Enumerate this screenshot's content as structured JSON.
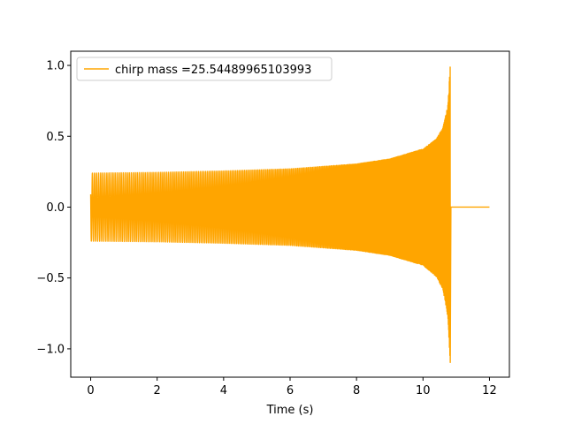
{
  "chart_data": {
    "type": "line",
    "title": "",
    "xlabel": "Time (s)",
    "ylabel": "",
    "xlim": [
      -0.6,
      12.6
    ],
    "ylim": [
      -1.2,
      1.1
    ],
    "x_ticks": [
      0,
      2,
      4,
      6,
      8,
      10,
      12
    ],
    "x_tick_labels": [
      "0",
      "2",
      "4",
      "6",
      "8",
      "10",
      "12"
    ],
    "y_ticks": [
      -1.0,
      -0.5,
      0.0,
      0.5,
      1.0
    ],
    "y_tick_labels": [
      "−1.0",
      "−0.5",
      "0.0",
      "0.5",
      "1.0"
    ],
    "grid": false,
    "legend_position": "upper-left",
    "series": [
      {
        "name": "chirp mass =25.54489965103993",
        "color": "#ffa500",
        "description": "gravitational-wave chirp: oscillation from t=0 to merger near t=10.85 s, then flat at 0 until t=12",
        "envelope": {
          "t": [
            0,
            2,
            4,
            6,
            8,
            9,
            10,
            10.4,
            10.6,
            10.75,
            10.82
          ],
          "upper": [
            0.24,
            0.245,
            0.255,
            0.27,
            0.305,
            0.34,
            0.41,
            0.48,
            0.56,
            0.72,
            1.0
          ],
          "lower": [
            -0.24,
            -0.245,
            -0.255,
            -0.27,
            -0.305,
            -0.34,
            -0.41,
            -0.49,
            -0.58,
            -0.78,
            -1.1
          ]
        },
        "merger_time": 10.83,
        "end_time": 12.0,
        "post_merger_value": 0.0
      }
    ]
  }
}
